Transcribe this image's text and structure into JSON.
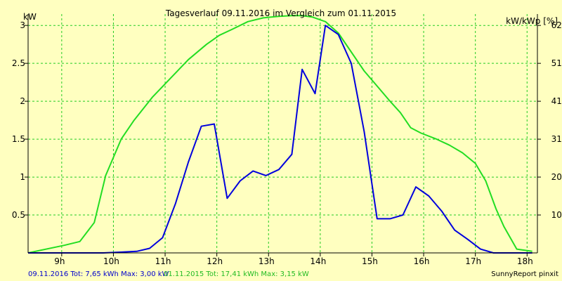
{
  "chart_data": {
    "type": "line",
    "title": "Tagesverlauf 09.11.2016 im Vergleich zum 01.11.2015",
    "ylabel_left": "kW",
    "ylabel_right": "kW/kWp [%]",
    "xlim": [
      8.35,
      18.2
    ],
    "ylim": [
      0,
      3.15
    ],
    "x_ticks": [
      {
        "value": 9,
        "label": "9h"
      },
      {
        "value": 10,
        "label": "10h"
      },
      {
        "value": 11,
        "label": "11h"
      },
      {
        "value": 12,
        "label": "12h"
      },
      {
        "value": 13,
        "label": "13h"
      },
      {
        "value": 14,
        "label": "14h"
      },
      {
        "value": 15,
        "label": "15h"
      },
      {
        "value": 16,
        "label": "16h"
      },
      {
        "value": 17,
        "label": "17h"
      },
      {
        "value": 18,
        "label": "18h"
      }
    ],
    "y_ticks_left": [
      {
        "value": 0.5,
        "label": "0.5"
      },
      {
        "value": 1,
        "label": "1"
      },
      {
        "value": 1.5,
        "label": "1.5"
      },
      {
        "value": 2,
        "label": "2"
      },
      {
        "value": 2.5,
        "label": "2.5"
      },
      {
        "value": 3,
        "label": "3"
      }
    ],
    "y_ticks_right": [
      {
        "value": 0.5,
        "label": "10,3"
      },
      {
        "value": 1,
        "label": "20,7"
      },
      {
        "value": 1.5,
        "label": "31,0"
      },
      {
        "value": 2,
        "label": "41,3"
      },
      {
        "value": 2.5,
        "label": "51,7"
      },
      {
        "value": 3,
        "label": "62,0"
      }
    ],
    "grid": true,
    "series": [
      {
        "id": "s2015",
        "color": "#22dd22",
        "x": [
          8.35,
          9.05,
          9.35,
          9.63,
          9.85,
          10.15,
          10.4,
          10.75,
          11.1,
          11.45,
          11.8,
          12.05,
          12.3,
          12.6,
          12.9,
          13.2,
          13.45,
          13.65,
          13.85,
          14.1,
          14.35,
          14.6,
          14.85,
          15.1,
          15.35,
          15.55,
          15.75,
          15.95,
          16.25,
          16.5,
          16.75,
          17.0,
          17.2,
          17.4,
          17.55,
          17.8,
          18.1
        ],
        "y": [
          0.0,
          0.1,
          0.15,
          0.4,
          1.02,
          1.5,
          1.75,
          2.05,
          2.3,
          2.55,
          2.75,
          2.87,
          2.95,
          3.05,
          3.1,
          3.12,
          3.13,
          3.13,
          3.11,
          3.05,
          2.9,
          2.65,
          2.4,
          2.2,
          2.0,
          1.85,
          1.65,
          1.58,
          1.5,
          1.42,
          1.32,
          1.18,
          0.95,
          0.58,
          0.35,
          0.05,
          0.02
        ]
      },
      {
        "id": "s2016",
        "color": "#0000dd",
        "x": [
          8.35,
          9.8,
          10.15,
          10.45,
          10.7,
          10.95,
          11.2,
          11.45,
          11.7,
          11.95,
          12.2,
          12.45,
          12.7,
          12.95,
          13.2,
          13.45,
          13.65,
          13.9,
          14.1,
          14.35,
          14.6,
          14.85,
          15.1,
          15.35,
          15.6,
          15.85,
          16.1,
          16.35,
          16.6,
          16.85,
          17.1,
          17.35,
          17.6,
          17.9,
          18.1
        ],
        "y": [
          0.0,
          0.0,
          0.01,
          0.02,
          0.06,
          0.2,
          0.65,
          1.2,
          1.67,
          1.7,
          0.72,
          0.95,
          1.08,
          1.02,
          1.1,
          1.3,
          2.42,
          2.1,
          3.0,
          2.88,
          2.5,
          1.6,
          0.45,
          0.45,
          0.5,
          0.87,
          0.75,
          0.55,
          0.3,
          0.18,
          0.05,
          0.0,
          0.0,
          0.0,
          0.0
        ]
      }
    ],
    "footer": {
      "entry_2016": "09.11.2016 Tot: 7,65 kWh Max: 3,00 kW",
      "entry_2015": "01.11.2015 Tot: 17,41 kWh Max: 3,15 kW",
      "brand": "SunnyReport pinxit"
    }
  },
  "colors": {
    "background": "#ffffc0",
    "grid": "#22cc22",
    "axis": "#000000",
    "legend_2016": "#0000cc",
    "legend_2015": "#22bb22"
  }
}
